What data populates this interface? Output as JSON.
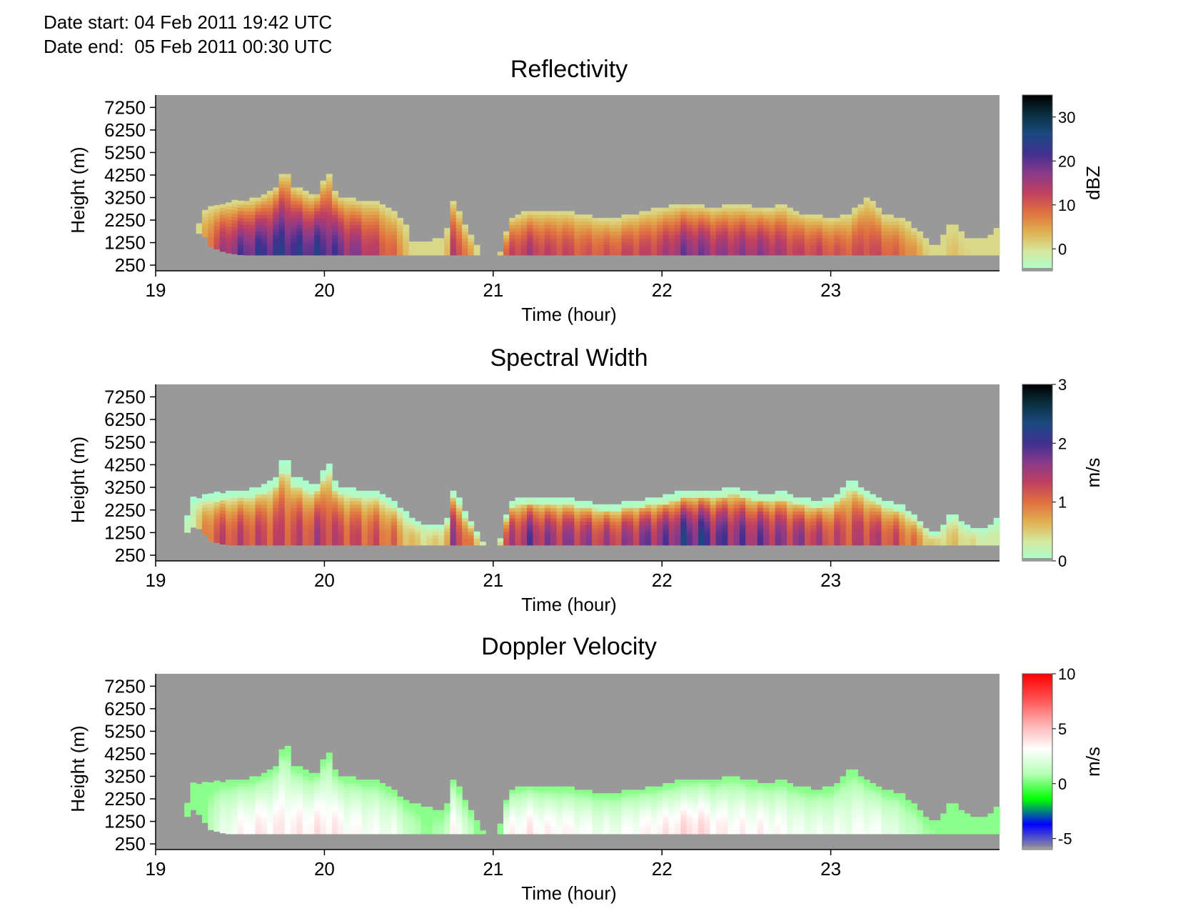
{
  "header": {
    "date_start": "Date start: 04 Feb 2011 19:42 UTC",
    "date_end": "Date end:  05 Feb 2011 00:30 UTC"
  },
  "colors": {
    "no_data": "#999999",
    "panel_frame": "#000000"
  },
  "chart_data": [
    {
      "type": "heatmap",
      "title": "Reflectivity",
      "xlabel": "Time (hour)",
      "ylabel": "Height (m)",
      "xlim": [
        19,
        24
      ],
      "ylim": [
        0,
        7800
      ],
      "xticks": [
        "19",
        "20",
        "21",
        "22",
        "23"
      ],
      "yticks": [
        "250",
        "1250",
        "2250",
        "3250",
        "4250",
        "5250",
        "6250",
        "7250"
      ],
      "colorbar": {
        "label": "dBZ",
        "range": [
          -5,
          35
        ],
        "ticks": [
          "0",
          "10",
          "20",
          "30"
        ],
        "colormap": [
          "#a8ffd0",
          "#d6e8a0",
          "#e0b050",
          "#e07040",
          "#c04060",
          "#8a3a8a",
          "#403090",
          "#1a4a80",
          "#0a3040",
          "#000000"
        ]
      },
      "grid": false,
      "echo_profile": {
        "time": [
          19.1,
          19.2,
          19.25,
          19.3,
          19.4,
          19.5,
          19.6,
          19.7,
          19.75,
          19.8,
          19.9,
          19.95,
          20.0,
          20.05,
          20.1,
          20.2,
          20.3,
          20.4,
          20.45,
          20.5,
          20.6,
          20.7,
          20.75,
          20.8,
          20.9,
          21.0,
          21.05,
          21.1,
          21.2,
          21.3,
          21.4,
          21.5,
          21.6,
          21.7,
          21.8,
          21.9,
          22.0,
          22.1,
          22.2,
          22.3,
          22.4,
          22.5,
          22.6,
          22.7,
          22.8,
          22.9,
          23.0,
          23.1,
          23.2,
          23.3,
          23.4,
          23.5,
          23.6,
          23.7,
          23.8,
          23.9,
          24.0
        ],
        "top_m": [
          0,
          0,
          2550,
          2800,
          2950,
          3050,
          3200,
          3700,
          4550,
          3700,
          3300,
          3400,
          4450,
          3300,
          3200,
          3050,
          3000,
          2500,
          2200,
          1300,
          1200,
          1500,
          3200,
          2100,
          900,
          0,
          1500,
          2400,
          2600,
          2600,
          2600,
          2450,
          2300,
          2200,
          2450,
          2600,
          2750,
          2900,
          2850,
          2750,
          2850,
          2800,
          2700,
          2850,
          2500,
          2400,
          2300,
          2450,
          3250,
          2400,
          2300,
          1700,
          900,
          2100,
          1300,
          1400,
          2000
        ],
        "bottom_m": [
          700,
          700,
          1900,
          1100,
          800,
          700,
          700,
          700,
          700,
          700,
          700,
          700,
          700,
          700,
          700,
          700,
          700,
          700,
          700,
          700,
          700,
          700,
          700,
          700,
          700,
          700,
          700,
          700,
          700,
          700,
          700,
          700,
          700,
          700,
          700,
          700,
          700,
          700,
          700,
          700,
          700,
          700,
          700,
          700,
          700,
          700,
          700,
          700,
          700,
          700,
          700,
          700,
          700,
          700,
          700,
          700,
          700
        ],
        "peak": [
          0,
          0,
          0.15,
          0.35,
          0.55,
          0.65,
          0.7,
          0.72,
          0.74,
          0.72,
          0.7,
          0.72,
          0.7,
          0.66,
          0.6,
          0.55,
          0.45,
          0.35,
          0.25,
          0.15,
          0.1,
          0.15,
          0.5,
          0.4,
          0.1,
          0,
          0.35,
          0.45,
          0.5,
          0.45,
          0.45,
          0.4,
          0.4,
          0.4,
          0.45,
          0.45,
          0.5,
          0.6,
          0.6,
          0.55,
          0.55,
          0.55,
          0.55,
          0.5,
          0.45,
          0.45,
          0.4,
          0.4,
          0.45,
          0.4,
          0.35,
          0.25,
          0.1,
          0.2,
          0.15,
          0.1,
          0.1
        ]
      }
    },
    {
      "type": "heatmap",
      "title": "Spectral Width",
      "xlabel": "Time (hour)",
      "ylabel": "Height (m)",
      "xlim": [
        19,
        24
      ],
      "ylim": [
        0,
        7800
      ],
      "xticks": [
        "19",
        "20",
        "21",
        "22",
        "23"
      ],
      "yticks": [
        "250",
        "1250",
        "2250",
        "3250",
        "4250",
        "5250",
        "6250",
        "7250"
      ],
      "colorbar": {
        "label": "m/s",
        "range": [
          0,
          3
        ],
        "ticks": [
          "0",
          "1",
          "2",
          "3"
        ],
        "colormap": [
          "#a8ffd0",
          "#d6e8a0",
          "#e0b050",
          "#e07040",
          "#c04060",
          "#8a3a8a",
          "#403090",
          "#1a4a80",
          "#0a3040",
          "#000000"
        ]
      },
      "grid": false,
      "echo_profile": {
        "time": [
          19.1,
          19.2,
          19.25,
          19.3,
          19.4,
          19.5,
          19.6,
          19.7,
          19.75,
          19.8,
          19.9,
          19.95,
          20.0,
          20.05,
          20.1,
          20.2,
          20.3,
          20.4,
          20.45,
          20.5,
          20.6,
          20.7,
          20.75,
          20.8,
          20.9,
          21.0,
          21.05,
          21.1,
          21.2,
          21.3,
          21.4,
          21.5,
          21.6,
          21.7,
          21.8,
          21.9,
          22.0,
          22.1,
          22.2,
          22.3,
          22.4,
          22.5,
          22.6,
          22.7,
          22.8,
          22.9,
          23.0,
          23.1,
          23.2,
          23.3,
          23.4,
          23.5,
          23.6,
          23.7,
          23.8,
          23.9,
          24.0
        ],
        "top_m": [
          0,
          2700,
          2750,
          2850,
          3000,
          3050,
          3200,
          3700,
          4700,
          3700,
          3300,
          3400,
          4500,
          3300,
          3200,
          3050,
          3000,
          2500,
          2200,
          1800,
          1500,
          1500,
          3200,
          2300,
          1000,
          0,
          1800,
          2700,
          2800,
          2700,
          2700,
          2600,
          2450,
          2400,
          2600,
          2650,
          2800,
          3000,
          3100,
          3000,
          3250,
          3000,
          2900,
          3000,
          2700,
          2600,
          2700,
          3550,
          3000,
          2600,
          2400,
          1800,
          1000,
          2100,
          1400,
          1400,
          2000
        ],
        "bottom_m": [
          700,
          1500,
          1400,
          900,
          700,
          700,
          700,
          700,
          700,
          700,
          700,
          700,
          700,
          700,
          700,
          700,
          700,
          700,
          700,
          700,
          700,
          700,
          700,
          700,
          700,
          700,
          700,
          700,
          700,
          700,
          700,
          700,
          700,
          700,
          700,
          700,
          700,
          700,
          700,
          700,
          700,
          700,
          700,
          700,
          700,
          700,
          700,
          700,
          700,
          700,
          700,
          700,
          700,
          700,
          700,
          700,
          700
        ],
        "peak": [
          0,
          0.1,
          0.2,
          0.4,
          0.45,
          0.45,
          0.45,
          0.45,
          0.45,
          0.45,
          0.45,
          0.5,
          0.5,
          0.45,
          0.45,
          0.42,
          0.4,
          0.35,
          0.25,
          0.2,
          0.15,
          0.2,
          0.55,
          0.45,
          0.15,
          0,
          0.4,
          0.5,
          0.6,
          0.55,
          0.55,
          0.55,
          0.5,
          0.5,
          0.55,
          0.6,
          0.6,
          0.7,
          0.72,
          0.65,
          0.62,
          0.6,
          0.6,
          0.55,
          0.55,
          0.5,
          0.45,
          0.45,
          0.5,
          0.45,
          0.4,
          0.3,
          0.15,
          0.2,
          0.15,
          0.1,
          0.1
        ]
      }
    },
    {
      "type": "heatmap",
      "title": "Doppler Velocity",
      "xlabel": "Time (hour)",
      "ylabel": "Height (m)",
      "xlim": [
        19,
        24
      ],
      "ylim": [
        0,
        7800
      ],
      "xticks": [
        "19",
        "20",
        "21",
        "22",
        "23"
      ],
      "yticks": [
        "250",
        "1250",
        "2250",
        "3250",
        "4250",
        "5250",
        "6250",
        "7250"
      ],
      "colorbar": {
        "label": "m/s",
        "range": [
          -6,
          10
        ],
        "ticks": [
          "-5",
          "0",
          "5",
          "10"
        ],
        "colormap": [
          "#999999",
          "#0000ff",
          "#00ff00",
          "#b4ffb4",
          "#ffffff",
          "#ffb0b0",
          "#ff5050",
          "#ff0000"
        ]
      },
      "grid": false,
      "echo_profile": {
        "time": [
          19.1,
          19.2,
          19.25,
          19.3,
          19.4,
          19.5,
          19.6,
          19.7,
          19.75,
          19.8,
          19.9,
          19.95,
          20.0,
          20.05,
          20.1,
          20.2,
          20.3,
          20.4,
          20.45,
          20.5,
          20.6,
          20.7,
          20.75,
          20.8,
          20.9,
          21.0,
          21.05,
          21.1,
          21.2,
          21.3,
          21.4,
          21.5,
          21.6,
          21.7,
          21.8,
          21.9,
          22.0,
          22.1,
          22.2,
          22.3,
          22.4,
          22.5,
          22.6,
          22.7,
          22.8,
          22.9,
          23.0,
          23.1,
          23.2,
          23.3,
          23.4,
          23.5,
          23.6,
          23.7,
          23.8,
          23.9,
          24.0
        ],
        "top_m": [
          0,
          2850,
          2800,
          2900,
          3000,
          3050,
          3200,
          3700,
          4800,
          3700,
          3300,
          3400,
          4500,
          3300,
          3200,
          3050,
          3000,
          2500,
          2200,
          2000,
          1800,
          1600,
          3200,
          2300,
          1000,
          0,
          2000,
          2700,
          2800,
          2700,
          2700,
          2600,
          2450,
          2400,
          2600,
          2650,
          2800,
          3000,
          3100,
          3000,
          3250,
          3000,
          2900,
          3000,
          2700,
          2600,
          2700,
          3550,
          3000,
          2600,
          2400,
          1800,
          1000,
          2100,
          1400,
          1400,
          2000
        ],
        "bottom_m": [
          700,
          1800,
          1500,
          900,
          700,
          700,
          700,
          700,
          700,
          700,
          700,
          700,
          700,
          700,
          700,
          700,
          700,
          700,
          700,
          700,
          700,
          700,
          700,
          700,
          700,
          700,
          700,
          700,
          700,
          700,
          700,
          700,
          700,
          700,
          700,
          700,
          700,
          700,
          700,
          700,
          700,
          700,
          700,
          700,
          700,
          700,
          700,
          700,
          700,
          700,
          700,
          700,
          700,
          700,
          700,
          700,
          700
        ],
        "peak": [
          0,
          0.3,
          0.35,
          0.45,
          0.55,
          0.6,
          0.62,
          0.62,
          0.62,
          0.62,
          0.62,
          0.63,
          0.63,
          0.62,
          0.6,
          0.58,
          0.56,
          0.55,
          0.5,
          0.45,
          0.4,
          0.45,
          0.6,
          0.55,
          0.35,
          0,
          0.55,
          0.6,
          0.62,
          0.6,
          0.6,
          0.58,
          0.55,
          0.55,
          0.58,
          0.6,
          0.62,
          0.65,
          0.66,
          0.62,
          0.6,
          0.6,
          0.6,
          0.58,
          0.55,
          0.55,
          0.55,
          0.55,
          0.58,
          0.55,
          0.5,
          0.45,
          0.4,
          0.4,
          0.38,
          0.35,
          0.35
        ]
      }
    }
  ]
}
